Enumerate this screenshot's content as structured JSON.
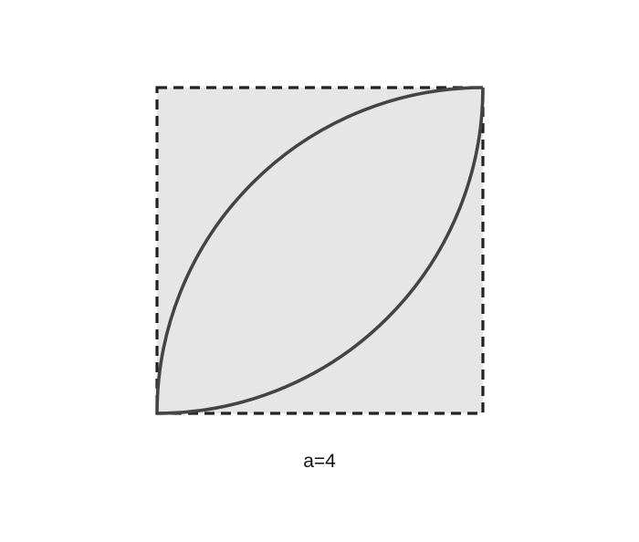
{
  "figure": {
    "caption": "a=4",
    "colors": {
      "square_fill": "#e6e6e6",
      "square_border": "#222222",
      "arc_stroke": "#444444",
      "background": "#ffffff"
    }
  }
}
